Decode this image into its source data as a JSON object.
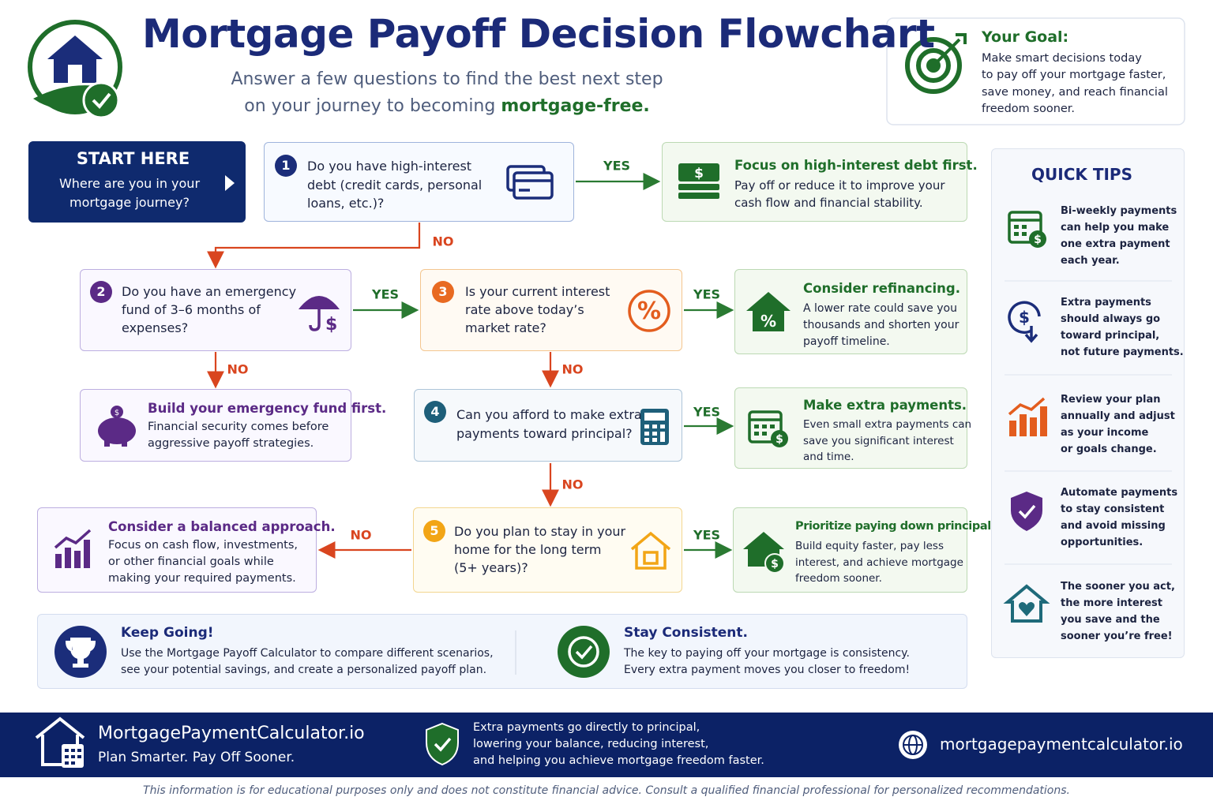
{
  "header": {
    "title": "Mortgage Payoff Decision Flowchart",
    "subtitle": {
      "line1": "Answer a few questions to find the best next step",
      "line2": "on your journey to becoming",
      "highlight": "mortgage-free."
    }
  },
  "goal": {
    "title": "Your Goal:",
    "lines": [
      "Make smart decisions today",
      "to pay off your mortgage faster,",
      "save money, and reach financial",
      "freedom sooner."
    ]
  },
  "start": {
    "title": "START HERE",
    "lines": [
      "Where are you in your",
      "mortgage journey?"
    ]
  },
  "questions": [
    {
      "number": 1,
      "lines": [
        "Do you have high-interest",
        "debt (credit cards, personal",
        "loans, etc.)?"
      ]
    },
    {
      "number": 2,
      "lines": [
        "Do you have an emergency",
        "fund of 3–6 months of",
        "expenses?"
      ]
    },
    {
      "number": 3,
      "lines": [
        "Is your current interest",
        "rate above today’s",
        "market rate?"
      ]
    },
    {
      "number": 4,
      "lines": [
        "Can you afford to make extra",
        "payments toward principal?"
      ]
    },
    {
      "number": 5,
      "lines": [
        "Do you plan to stay in your",
        "home for the long term",
        "(5+ years)?"
      ]
    }
  ],
  "outcomes": [
    {
      "title": "Focus on high-interest debt first.",
      "lines": [
        "Pay off or reduce it to improve your",
        "cash flow and financial stability."
      ]
    },
    {
      "title": "Consider refinancing.",
      "lines": [
        "A lower rate could save you",
        "thousands and shorten your",
        "payoff timeline."
      ]
    },
    {
      "title": "Build your emergency fund first.",
      "lines": [
        "Financial security comes before",
        "aggressive payoff strategies."
      ]
    },
    {
      "title": "Make extra payments.",
      "lines": [
        "Even small extra payments can",
        "save you significant interest",
        "and time."
      ]
    },
    {
      "title": "Consider a balanced approach.",
      "lines": [
        "Focus on cash flow, investments,",
        "or other financial goals while",
        "making your required payments."
      ]
    },
    {
      "title": "Prioritize paying down principal.",
      "lines": [
        "Build equity faster, pay less",
        "interest, and achieve mortgage",
        "freedom sooner."
      ]
    }
  ],
  "edges": [
    {
      "label": "YES"
    },
    {
      "label": "NO"
    },
    {
      "label": "YES"
    },
    {
      "label": "NO"
    },
    {
      "label": "YES"
    },
    {
      "label": "NO"
    },
    {
      "label": "YES"
    },
    {
      "label": "NO"
    },
    {
      "label": "NO"
    },
    {
      "label": "YES"
    }
  ],
  "tips": {
    "title": "QUICK TIPS",
    "items": [
      {
        "lines": [
          "Bi-weekly payments",
          "can help you make",
          "one extra payment",
          "each year."
        ]
      },
      {
        "lines": [
          "Extra payments",
          "should always go",
          "toward principal,",
          "not future payments."
        ]
      },
      {
        "lines": [
          "Review your plan",
          "annually and adjust",
          "as your income",
          "or goals change."
        ]
      },
      {
        "lines": [
          "Automate payments",
          "to stay consistent",
          "and avoid missing",
          "opportunities."
        ]
      },
      {
        "lines": [
          "The sooner you act,",
          "the more interest",
          "you save and the",
          "sooner you’re free!"
        ]
      }
    ]
  },
  "banner": [
    {
      "title": "Keep Going!",
      "lines": [
        "Use the Mortgage Payoff Calculator to compare different scenarios,",
        "see your potential savings, and create a personalized payoff plan."
      ]
    },
    {
      "title": "Stay Consistent.",
      "lines": [
        "The key to paying off your mortgage is consistency.",
        "Every extra payment moves you closer to freedom!"
      ]
    }
  ],
  "footer": {
    "brand": "MortgagePaymentCalculator.io",
    "tagline": "Plan Smarter. Pay Off Sooner.",
    "message": [
      "Extra payments go directly to principal,",
      "lowering your balance, reducing interest,",
      "and helping you achieve mortgage freedom faster."
    ],
    "url": "mortgagepaymentcalculator.io"
  },
  "disclaimer": "This information is for educational purposes only and does not constitute financial advice. Consult a qualified financial professional for personalized recommendations."
}
